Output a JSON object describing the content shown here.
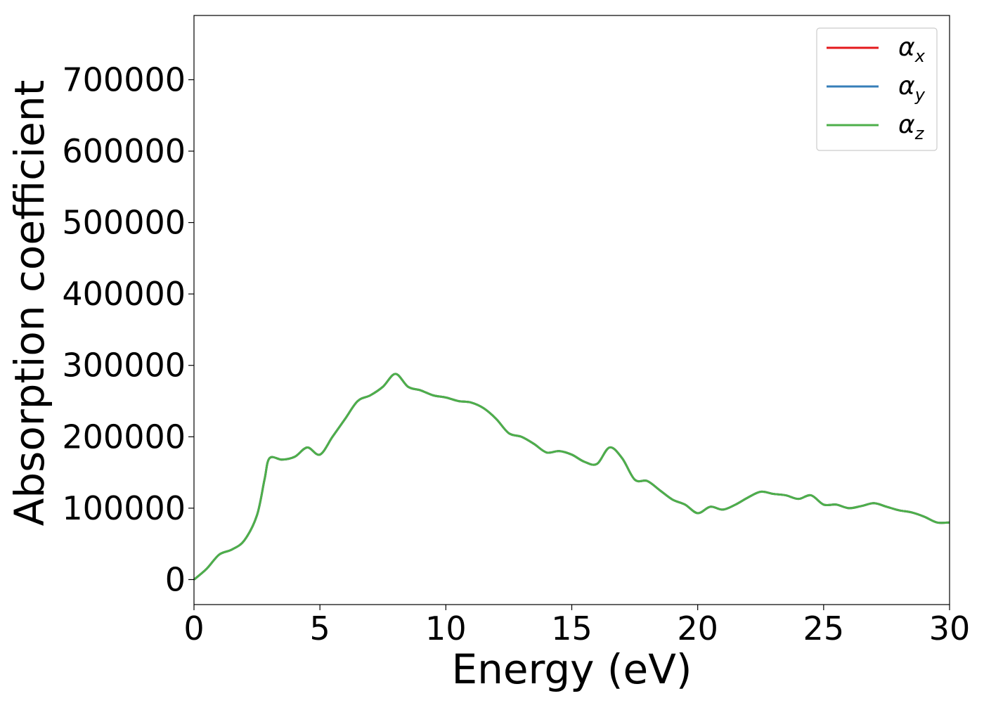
{
  "chart_data": {
    "type": "line",
    "title": "",
    "xlabel": "Energy (eV)",
    "ylabel": "Absorption coefficient",
    "xlim": [
      0,
      30
    ],
    "ylim": [
      -35000,
      790000
    ],
    "xticks": [
      0,
      5,
      10,
      15,
      20,
      25,
      30
    ],
    "xtick_labels": [
      "0",
      "5",
      "10",
      "15",
      "20",
      "25",
      "30"
    ],
    "yticks": [
      0,
      100000,
      200000,
      300000,
      400000,
      500000,
      600000,
      700000
    ],
    "ytick_labels": [
      "0",
      "100000",
      "200000",
      "300000",
      "400000",
      "500000",
      "600000",
      "700000"
    ],
    "grid": false,
    "legend_position": "top-right",
    "x": [
      0,
      0.5,
      1,
      1.5,
      2,
      2.5,
      2.8,
      3,
      3.5,
      4,
      4.5,
      5,
      5.5,
      6,
      6.5,
      7,
      7.5,
      8,
      8.5,
      9,
      9.5,
      10,
      10.5,
      11,
      11.5,
      12,
      12.5,
      13,
      13.5,
      14,
      14.5,
      15,
      15.5,
      16,
      16.5,
      17,
      17.5,
      18,
      18.5,
      19,
      19.5,
      20,
      20.5,
      21,
      21.5,
      22,
      22.5,
      23,
      23.5,
      24,
      24.5,
      25,
      25.5,
      26,
      26.5,
      27,
      27.5,
      28,
      28.5,
      29,
      29.5,
      30
    ],
    "series": [
      {
        "name": "α",
        "subscript": "x",
        "color": "#e41a1c",
        "values": [
          0,
          15000,
          35000,
          42000,
          55000,
          90000,
          140000,
          170000,
          168000,
          172000,
          185000,
          175000,
          200000,
          225000,
          250000,
          258000,
          270000,
          288000,
          270000,
          265000,
          258000,
          255000,
          250000,
          248000,
          240000,
          225000,
          205000,
          200000,
          190000,
          178000,
          180000,
          175000,
          165000,
          162000,
          185000,
          170000,
          140000,
          138000,
          125000,
          112000,
          105000,
          93000,
          102000,
          98000,
          105000,
          115000,
          123000,
          120000,
          118000,
          113000,
          118000,
          105000,
          105000,
          100000,
          103000,
          107000,
          102000,
          97000,
          94000,
          88000,
          80000,
          80000
        ]
      },
      {
        "name": "α",
        "subscript": "y",
        "color": "#377eb8",
        "values": [
          0,
          15000,
          35000,
          42000,
          55000,
          90000,
          140000,
          170000,
          168000,
          172000,
          185000,
          175000,
          200000,
          225000,
          250000,
          258000,
          270000,
          288000,
          270000,
          265000,
          258000,
          255000,
          250000,
          248000,
          240000,
          225000,
          205000,
          200000,
          190000,
          178000,
          180000,
          175000,
          165000,
          162000,
          185000,
          170000,
          140000,
          138000,
          125000,
          112000,
          105000,
          93000,
          102000,
          98000,
          105000,
          115000,
          123000,
          120000,
          118000,
          113000,
          118000,
          105000,
          105000,
          100000,
          103000,
          107000,
          102000,
          97000,
          94000,
          88000,
          80000,
          80000
        ]
      },
      {
        "name": "α",
        "subscript": "z",
        "color": "#4daf4a",
        "values": [
          0,
          15000,
          35000,
          42000,
          55000,
          90000,
          140000,
          170000,
          168000,
          172000,
          185000,
          175000,
          200000,
          225000,
          250000,
          258000,
          270000,
          288000,
          270000,
          265000,
          258000,
          255000,
          250000,
          248000,
          240000,
          225000,
          205000,
          200000,
          190000,
          178000,
          180000,
          175000,
          165000,
          162000,
          185000,
          170000,
          140000,
          138000,
          125000,
          112000,
          105000,
          93000,
          102000,
          98000,
          105000,
          115000,
          123000,
          120000,
          118000,
          113000,
          118000,
          105000,
          105000,
          100000,
          103000,
          107000,
          102000,
          97000,
          94000,
          88000,
          80000,
          80000
        ]
      }
    ]
  }
}
